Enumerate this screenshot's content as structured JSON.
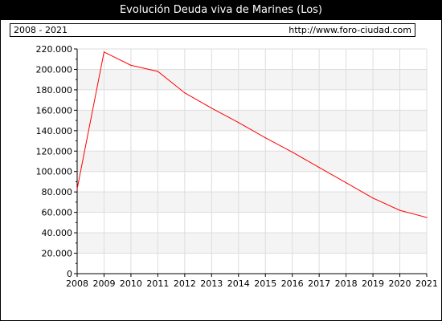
{
  "header": {
    "title": "Evolución Deuda viva de Marines (Los)",
    "period": "2008 - 2021",
    "source_url": "http://www.foro-ciudad.com"
  },
  "colors": {
    "line": "#ff0000",
    "band": "#f4f4f4",
    "grid": "#dddddd"
  },
  "chart_data": {
    "type": "line",
    "title": "Evolución Deuda viva de Marines (Los)",
    "x": [
      2008,
      2009,
      2010,
      2011,
      2012,
      2013,
      2014,
      2015,
      2016,
      2017,
      2018,
      2019,
      2020,
      2021
    ],
    "series": [
      {
        "values": [
          83000,
          217000,
          204000,
          198000,
          177000,
          162000,
          148000,
          133000,
          119000,
          104000,
          89000,
          74000,
          62000,
          55000
        ]
      }
    ],
    "xlim": [
      2008,
      2021
    ],
    "ylim": [
      0,
      220000
    ],
    "y_ticks": [
      "0",
      "20.000",
      "40.000",
      "60.000",
      "80.000",
      "100.000",
      "120.000",
      "140.000",
      "160.000",
      "180.000",
      "200.000",
      "220.000"
    ],
    "x_ticks": [
      "2008",
      "2009",
      "2010",
      "2011",
      "2012",
      "2013",
      "2014",
      "2015",
      "2016",
      "2017",
      "2018",
      "2019",
      "2020",
      "2021"
    ],
    "grid": true
  }
}
